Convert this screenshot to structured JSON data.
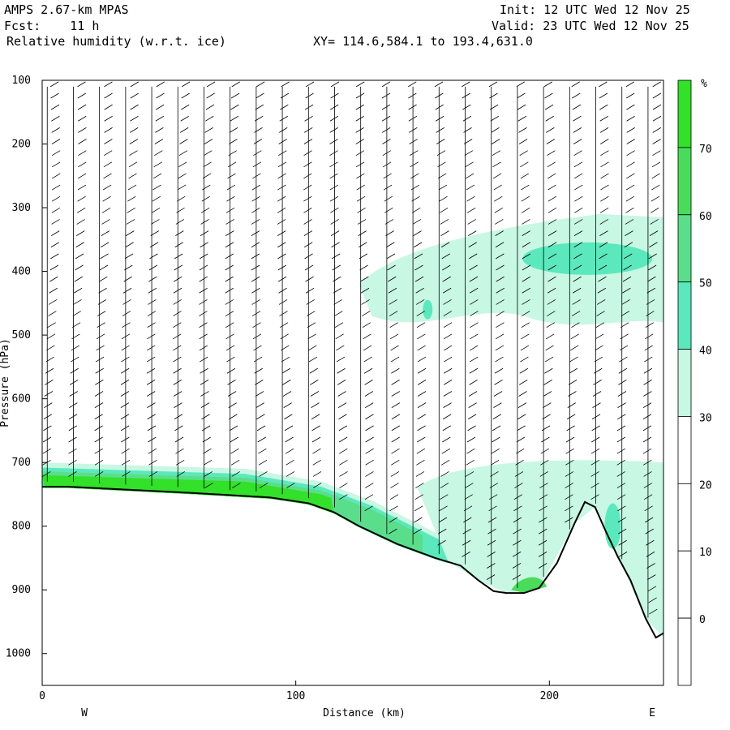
{
  "header": {
    "model": "AMPS 2.67-km MPAS",
    "fcst": "Fcst:    11 h",
    "field": "Relative humidity (w.r.t. ice)",
    "init": "Init: 12 UTC Wed 12 Nov 25",
    "valid": "Valid: 23 UTC Wed 12 Nov 25",
    "xy": "XY= 114.6,584.1 to 193.4,631.0"
  },
  "chart_data": {
    "type": "heatmap",
    "subtype": "vertical cross-section",
    "xlabel": "Distance (km)",
    "ylabel": "Pressure (hPa)",
    "xlim": [
      0,
      245
    ],
    "ylim": [
      1050,
      100
    ],
    "x_ticks": [
      "0",
      "100",
      "200"
    ],
    "y_ticks": [
      "100",
      "200",
      "300",
      "400",
      "500",
      "600",
      "700",
      "800",
      "900",
      "1000"
    ],
    "direction_labels": [
      "W",
      "E"
    ],
    "colorbar": {
      "unit_label": "%",
      "tick_labels": [
        "70",
        "60",
        "50",
        "40",
        "30",
        "20",
        "10",
        "0"
      ],
      "levels": [
        30,
        40,
        50,
        60,
        70
      ],
      "colors": [
        "#c8f7e3",
        "#5ce8bd",
        "#5bde8b",
        "#4bdb5b",
        "#33e02a"
      ]
    },
    "terrain_surface_hPa": {
      "x": [
        0,
        10,
        30,
        60,
        90,
        105,
        115,
        125,
        140,
        155,
        165,
        172,
        178,
        183,
        190,
        196,
        203,
        210,
        214,
        218,
        222,
        227,
        232,
        238,
        242,
        245
      ],
      "p": [
        738,
        738,
        742,
        748,
        755,
        764,
        778,
        800,
        828,
        850,
        862,
        885,
        902,
        905,
        905,
        897,
        858,
        795,
        762,
        770,
        806,
        848,
        885,
        945,
        975,
        968
      ]
    },
    "moist_layer": {
      "x": [
        0,
        40,
        80,
        110,
        130,
        150,
        160
      ],
      "top_hPa": [
        700,
        705,
        710,
        730,
        760,
        800,
        820
      ],
      "max_percent": 70
    },
    "upper_moist_region": {
      "x_range": [
        130,
        245
      ],
      "p_range": [
        310,
        490
      ],
      "max_percent": 40
    },
    "barbs": "wind barbs along columns every ~10 km"
  },
  "colors": {
    "terrain_line": "#000000",
    "barb": "#000000"
  }
}
